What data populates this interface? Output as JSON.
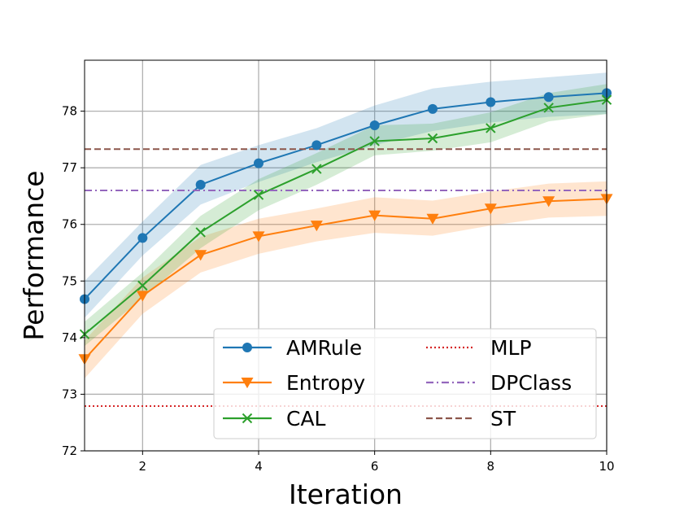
{
  "chart_data": {
    "type": "line",
    "title": "",
    "xlabel": "Iteration",
    "ylabel": "Performance",
    "xlim": [
      1,
      10
    ],
    "ylim": [
      72,
      78.9
    ],
    "xticks": [
      2,
      4,
      6,
      8,
      10
    ],
    "yticks": [
      72,
      73,
      74,
      75,
      76,
      77,
      78
    ],
    "grid": true,
    "legend_position": "lower-right",
    "x": [
      1,
      2,
      3,
      4,
      5,
      6,
      7,
      8,
      9,
      10
    ],
    "series": [
      {
        "name": "AMRule",
        "color": "#1f77b4",
        "marker": "circle",
        "values": [
          74.68,
          75.76,
          76.7,
          77.08,
          77.4,
          77.75,
          78.04,
          78.16,
          78.25,
          78.32
        ],
        "lower": [
          74.35,
          75.45,
          76.35,
          76.75,
          77.1,
          77.4,
          77.65,
          77.8,
          77.9,
          77.95
        ],
        "upper": [
          75.0,
          76.05,
          77.05,
          77.4,
          77.7,
          78.1,
          78.4,
          78.52,
          78.6,
          78.68
        ]
      },
      {
        "name": "Entropy",
        "color": "#ff7f0e",
        "marker": "triangle-down",
        "values": [
          73.62,
          74.74,
          75.46,
          75.79,
          75.98,
          76.16,
          76.1,
          76.28,
          76.41,
          76.45
        ],
        "lower": [
          73.28,
          74.42,
          75.15,
          75.48,
          75.7,
          75.85,
          75.8,
          75.98,
          76.12,
          76.15
        ],
        "upper": [
          73.95,
          75.06,
          75.78,
          76.1,
          76.28,
          76.48,
          76.42,
          76.58,
          76.72,
          76.76
        ]
      },
      {
        "name": "CAL",
        "color": "#2ca02c",
        "marker": "x",
        "values": [
          74.06,
          74.92,
          75.86,
          76.52,
          76.98,
          77.47,
          77.52,
          77.7,
          78.06,
          78.2
        ],
        "lower": [
          73.85,
          74.7,
          75.58,
          76.25,
          76.7,
          77.22,
          77.3,
          77.45,
          77.82,
          77.95
        ],
        "upper": [
          74.28,
          75.15,
          76.15,
          76.8,
          77.26,
          77.75,
          77.78,
          77.98,
          78.32,
          78.48
        ]
      },
      {
        "name": "MLP",
        "color": "#d62728",
        "dash": "dotted",
        "values": [
          72.79,
          72.79,
          72.79,
          72.79,
          72.79,
          72.79,
          72.79,
          72.79,
          72.79,
          72.79
        ]
      },
      {
        "name": "DPClass",
        "color": "#9467bd",
        "dash": "dashdot",
        "values": [
          76.6,
          76.6,
          76.6,
          76.6,
          76.6,
          76.6,
          76.6,
          76.6,
          76.6,
          76.6
        ]
      },
      {
        "name": "ST",
        "color": "#8c564b",
        "dash": "dashed",
        "values": [
          77.33,
          77.33,
          77.33,
          77.33,
          77.33,
          77.33,
          77.33,
          77.33,
          77.33,
          77.33
        ]
      }
    ]
  }
}
